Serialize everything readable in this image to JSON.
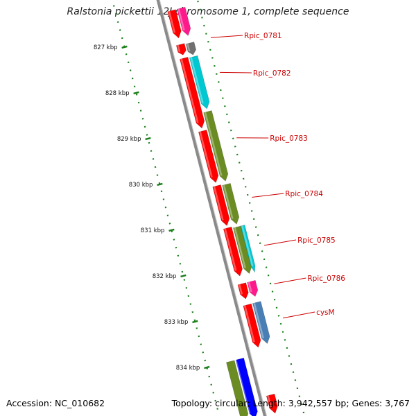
{
  "title": "Ralstonia pickettii 12J chromosome 1, complete sequence",
  "footer": {
    "accession": "Accession: NC_010682",
    "summary": "Topology: circular; Length: 3,942,557 bp; Genes: 3,767"
  },
  "colors": {
    "red": "#ff0000",
    "pink": "#ff1a8c",
    "gray": "#707070",
    "cyan": "#00c8d2",
    "olive": "#6b8c23",
    "steel": "#4a7fb5",
    "blue": "#0000ff",
    "label": "#cc0000",
    "tick": "#1a7f1a"
  },
  "scale_ticks": [
    "827 kbp",
    "828 kbp",
    "829 kbp",
    "830 kbp",
    "831 kbp",
    "832 kbp",
    "833 kbp",
    "834 kbp"
  ],
  "gene_labels": [
    "Rpic_0781",
    "Rpic_0782",
    "Rpic_0783",
    "Rpic_0784",
    "Rpic_0785",
    "Rpic_0786",
    "cysM"
  ],
  "genes": [
    {
      "track": "outer-1",
      "color": "red",
      "start": -0.5,
      "end": 0.1
    },
    {
      "track": "outer-2",
      "color": "pink",
      "start": -0.5,
      "end": 0.1
    },
    {
      "track": "outer-1",
      "color": "red",
      "start": 0.24,
      "end": 0.47
    },
    {
      "track": "outer-2",
      "color": "gray",
      "start": 0.26,
      "end": 0.52
    },
    {
      "track": "outer-1",
      "color": "red",
      "start": 0.54,
      "end": 2.07
    },
    {
      "track": "outer-2",
      "color": "cyan",
      "start": 0.56,
      "end": 1.7
    },
    {
      "track": "outer-2",
      "color": "olive",
      "start": 1.76,
      "end": 3.28
    },
    {
      "track": "outer-1",
      "color": "red",
      "start": 2.13,
      "end": 3.26
    },
    {
      "track": "outer-1",
      "color": "red",
      "start": 3.33,
      "end": 4.2
    },
    {
      "track": "outer-2",
      "color": "olive",
      "start": 3.35,
      "end": 4.22
    },
    {
      "track": "outer-1",
      "color": "red",
      "start": 4.25,
      "end": 5.3
    },
    {
      "track": "outer-2",
      "color": "olive",
      "start": 4.28,
      "end": 5.3
    },
    {
      "track": "outer-3",
      "color": "cyan",
      "start": 4.28,
      "end": 5.3
    },
    {
      "track": "outer-1",
      "color": "red",
      "start": 5.47,
      "end": 5.8
    },
    {
      "track": "outer-2",
      "color": "pink",
      "start": 5.47,
      "end": 5.8
    },
    {
      "track": "outer-1",
      "color": "red",
      "start": 5.93,
      "end": 6.86
    },
    {
      "track": "outer-2",
      "color": "steel",
      "start": 5.93,
      "end": 6.83
    },
    {
      "track": "outer-1",
      "color": "red",
      "start": 7.9,
      "end": 8.3
    },
    {
      "track": "inner-1",
      "color": "blue",
      "start": 7.0,
      "end": 8.3
    },
    {
      "track": "inner-2",
      "color": "olive",
      "start": 7.0,
      "end": 8.3
    }
  ]
}
